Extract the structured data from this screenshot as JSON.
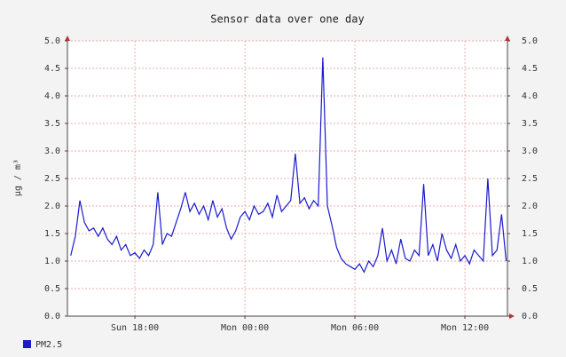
{
  "chart_data": {
    "type": "line",
    "title": "Sensor data over one day",
    "ylabel": "µg / m³",
    "xlim": [
      14.32,
      38.32
    ],
    "xticks": [
      {
        "value": 18,
        "label": "Sun 18:00"
      },
      {
        "value": 24,
        "label": "Mon 00:00"
      },
      {
        "value": 30,
        "label": "Mon 06:00"
      },
      {
        "value": 36,
        "label": "Mon 12:00"
      }
    ],
    "ylim": [
      0,
      5
    ],
    "yticks": [
      {
        "value": 0,
        "label": "0.0"
      },
      0.5,
      {
        "value": 1,
        "label": "1.0"
      },
      1.5,
      {
        "value": 2,
        "label": "2.0"
      },
      2.5,
      {
        "value": 3,
        "label": "3.0"
      },
      3.5,
      {
        "value": 4,
        "label": "4.0"
      },
      4.5,
      {
        "value": 5,
        "label": "5.0"
      }
    ],
    "y2lim": [
      0,
      5
    ],
    "y2ticks": [
      {
        "value": 0,
        "label": "0.0"
      },
      0.5,
      {
        "value": 1,
        "label": "1.0"
      },
      1.5,
      {
        "value": 2,
        "label": "2.0"
      },
      2.5,
      {
        "value": 3,
        "label": "3.0"
      },
      3.5,
      {
        "value": 4,
        "label": "4.0"
      },
      4.5,
      {
        "value": 5,
        "label": "5.0"
      }
    ],
    "grid": true,
    "legend": "bottom-left",
    "x": [
      14.5,
      14.75,
      15,
      15.25,
      15.5,
      15.75,
      16,
      16.25,
      16.5,
      16.75,
      17,
      17.25,
      17.5,
      17.75,
      18,
      18.25,
      18.5,
      18.75,
      19,
      19.25,
      19.5,
      19.75,
      20,
      20.25,
      20.5,
      20.75,
      21,
      21.25,
      21.5,
      21.75,
      22,
      22.25,
      22.5,
      22.75,
      23,
      23.25,
      23.5,
      23.75,
      24,
      24.25,
      24.5,
      24.75,
      25,
      25.25,
      25.5,
      25.75,
      26,
      26.25,
      26.5,
      26.75,
      27,
      27.25,
      27.5,
      27.75,
      28,
      28.25,
      28.5,
      28.75,
      29,
      29.25,
      29.5,
      29.75,
      30,
      30.25,
      30.5,
      30.75,
      31,
      31.25,
      31.5,
      31.75,
      32,
      32.25,
      32.5,
      32.75,
      33,
      33.25,
      33.5,
      33.75,
      34,
      34.25,
      34.5,
      34.75,
      35,
      35.25,
      35.5,
      35.75,
      36,
      36.25,
      36.5,
      36.75,
      37,
      37.25,
      37.5,
      37.75,
      38,
      38.25
    ],
    "series": [
      {
        "name": "PM2.5",
        "color": "#1a1ad0",
        "values": [
          1.1,
          1.45,
          2.1,
          1.7,
          1.55,
          1.6,
          1.45,
          1.6,
          1.4,
          1.3,
          1.45,
          1.2,
          1.3,
          1.1,
          1.15,
          1.05,
          1.2,
          1.1,
          1.3,
          2.25,
          1.3,
          1.5,
          1.45,
          1.7,
          1.95,
          2.25,
          1.9,
          2.05,
          1.85,
          2.0,
          1.75,
          2.1,
          1.8,
          1.95,
          1.6,
          1.4,
          1.55,
          1.8,
          1.9,
          1.75,
          2.0,
          1.85,
          1.9,
          2.05,
          1.8,
          2.2,
          1.9,
          2.0,
          2.1,
          2.95,
          2.05,
          2.15,
          1.95,
          2.1,
          2.0,
          4.7,
          2.0,
          1.65,
          1.25,
          1.05,
          0.95,
          0.9,
          0.85,
          0.95,
          0.8,
          1.0,
          0.9,
          1.1,
          1.6,
          1.0,
          1.2,
          0.95,
          1.4,
          1.05,
          1.0,
          1.2,
          1.1,
          2.4,
          1.1,
          1.3,
          1.0,
          1.5,
          1.2,
          1.05,
          1.3,
          1.0,
          1.1,
          0.95,
          1.2,
          1.1,
          1.0,
          2.5,
          1.1,
          1.2,
          1.85,
          1.0
        ]
      }
    ]
  }
}
